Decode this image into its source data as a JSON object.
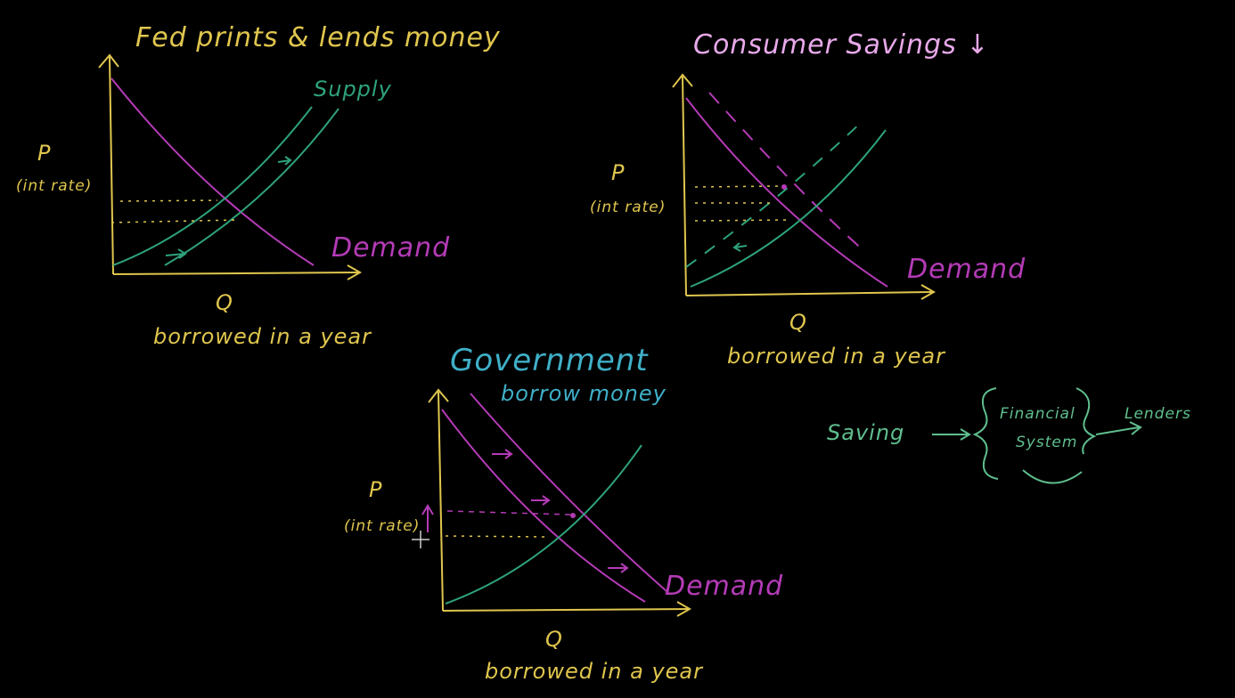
{
  "colors": {
    "background": "#000000",
    "axis": "#e0c64e",
    "demand": "#b43bb6",
    "supply": "#2ea37a",
    "pink_title": "#e8a9ea",
    "blue_title": "#3fb0c8",
    "savings_note": "#5fbf8e"
  },
  "graph1": {
    "title": "Fed prints & lends money",
    "y_label": "P",
    "y_sublabel": "(int rate)",
    "x_label": "Q",
    "x_sublabel": "borrowed in a year",
    "supply_label": "Supply",
    "demand_label": "Demand"
  },
  "graph2": {
    "title": "Consumer Savings ↓",
    "y_label": "P",
    "y_sublabel": "(int rate)",
    "x_label": "Q",
    "x_sublabel": "borrowed in a year",
    "demand_label": "Demand"
  },
  "graph3": {
    "title": "Government",
    "title_line2": "borrow money",
    "y_label": "P",
    "y_sublabel": "(int rate)",
    "x_label": "Q",
    "x_sublabel": "borrowed in a year",
    "demand_label": "Demand"
  },
  "flow_note": {
    "left": "Saving",
    "middle_line1": "Financial",
    "middle_line2": "System",
    "right": "Lenders"
  }
}
